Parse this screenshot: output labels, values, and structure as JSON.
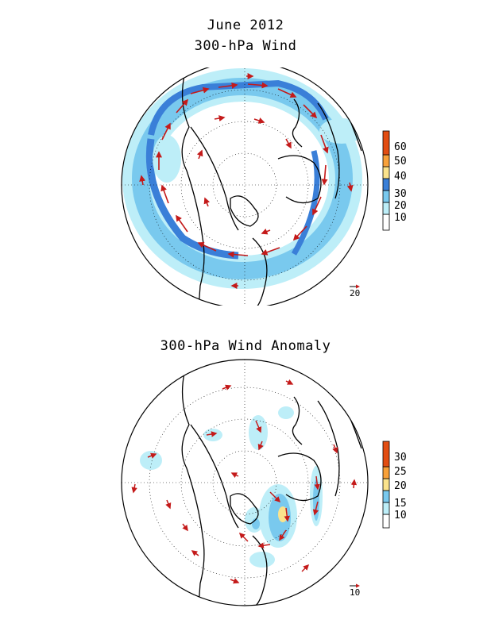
{
  "titles": {
    "main": "June 2012",
    "panel1": "300-hPa Wind",
    "panel2": "300-hPa Wind Anomaly"
  },
  "panel1": {
    "colorbar_labels": [
      "10",
      "20",
      "30",
      "40",
      "50",
      "60"
    ],
    "colorbar_colors": [
      "#ffffff",
      "#bdeef8",
      "#79c9ee",
      "#3a7fd8",
      "#fbe38c",
      "#f8a13a",
      "#e24d12"
    ],
    "reference_vector": "20"
  },
  "panel2": {
    "colorbar_labels": [
      "10",
      "15",
      "20",
      "25",
      "30"
    ],
    "colorbar_colors": [
      "#ffffff",
      "#bdeef8",
      "#79c9ee",
      "#fbe38c",
      "#f8a13a",
      "#e24d12"
    ],
    "reference_vector": "10"
  },
  "colors": {
    "arrow": "#c41a1a",
    "coast": "#000000",
    "grid": "#000000"
  }
}
